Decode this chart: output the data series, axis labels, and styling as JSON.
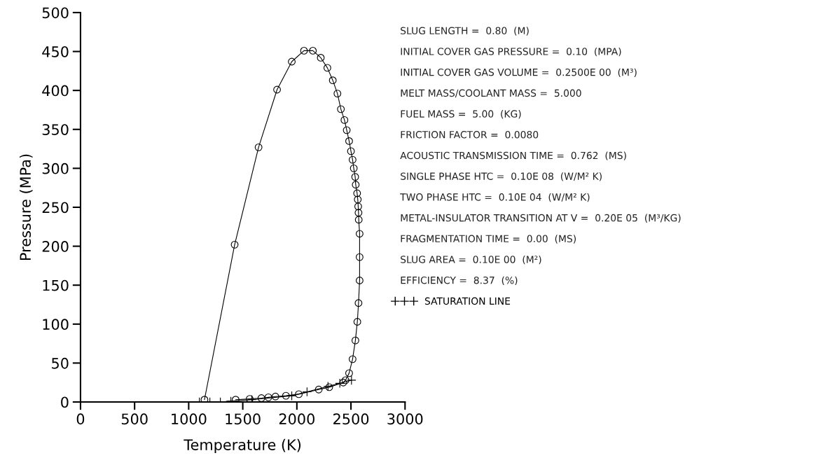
{
  "chart_data": {
    "type": "line",
    "xlabel": "Temperature (K)",
    "ylabel": "Pressure (MPa)",
    "xlim": [
      0,
      3000
    ],
    "ylim": [
      0,
      500
    ],
    "xticks": [
      0,
      500,
      1000,
      1500,
      2000,
      2500,
      3000
    ],
    "yticks": [
      0,
      50,
      100,
      150,
      200,
      250,
      300,
      350,
      400,
      450,
      500
    ],
    "grid": false,
    "legend": "right",
    "series": [
      {
        "color": "#000000",
        "marker": "circle",
        "x": [
          1146,
          1425,
          1646,
          1817,
          1953,
          2066,
          2148,
          2221,
          2282,
          2332,
          2375,
          2407,
          2440,
          2461,
          2483,
          2500,
          2515,
          2526,
          2539,
          2544,
          2557,
          2563,
          2567,
          2570,
          2572,
          2580,
          2580,
          2580,
          2570,
          2559,
          2541,
          2515,
          2483,
          2450,
          2429,
          2299,
          2202,
          2018,
          1899,
          1802,
          1737,
          1672,
          1564,
          1434
        ],
        "values": [
          3,
          202,
          327,
          401,
          437,
          451,
          451,
          442,
          429,
          413,
          396,
          376,
          362,
          349,
          335,
          322,
          311,
          300,
          289,
          279,
          268,
          260,
          251,
          243,
          234,
          216,
          186,
          156,
          127,
          103,
          79,
          55,
          37,
          28,
          25,
          19,
          16,
          10,
          8,
          7,
          6,
          5,
          4,
          3
        ]
      },
      {
        "name": "SATURATION LINE",
        "color": "#000000",
        "marker": "cross",
        "x": [
          1099,
          1196,
          1293,
          1390,
          1584,
          1953,
          2094,
          2288,
          2397,
          2505
        ],
        "values": [
          0,
          0,
          0,
          1,
          3,
          8,
          13,
          20,
          24,
          28
        ]
      }
    ],
    "annotations": [
      "SLUG LENGTH =  0.80  (M)",
      "INITIAL COVER GAS PRESSURE =  0.10  (MPA)",
      "INITIAL COVER GAS VOLUME =  0.2500E 00  (M³)",
      "MELT MASS/COOLANT MASS =  5.000",
      "FUEL MASS =  5.00  (KG)",
      "FRICTION FACTOR =  0.0080",
      "ACOUSTIC TRANSMISSION TIME =  0.762  (MS)",
      "SINGLE PHASE HTC =  0.10E 08  (W/M² K)",
      "TWO PHASE HTC =  0.10E 04  (W/M² K)",
      "METAL-INSULATOR TRANSITION AT V =  0.20E 05  (M³/KG)",
      "FRAGMENTATION TIME =  0.00  (MS)",
      "SLUG AREA =  0.10E 00  (M²)",
      "EFFICIENCY =  8.37  (%)"
    ]
  }
}
